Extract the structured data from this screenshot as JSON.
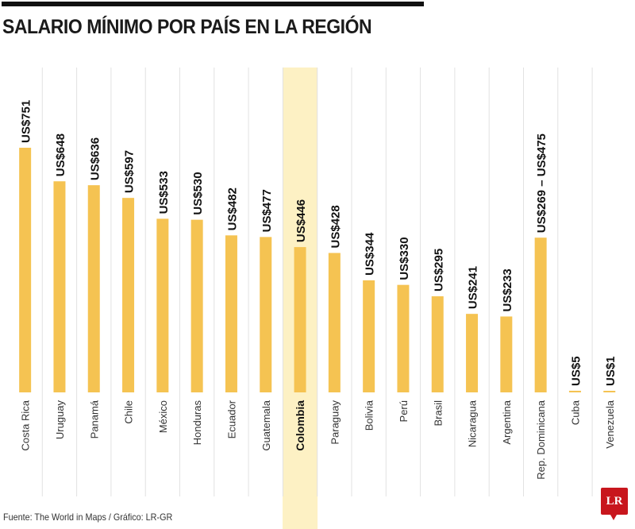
{
  "chart_data": {
    "type": "bar",
    "title": "SALARIO MÍNIMO POR PAÍS EN LA REGIÓN",
    "categories": [
      "Costa Rica",
      "Uruguay",
      "Panamá",
      "Chile",
      "México",
      "Honduras",
      "Ecuador",
      "Guatemala",
      "Colombia",
      "Paraguay",
      "Bolivia",
      "Perú",
      "Brasil",
      "Nicaragua",
      "Argentina",
      "Rep. Dominicana",
      "Cuba",
      "Venezuela"
    ],
    "values": [
      751,
      648,
      636,
      597,
      533,
      530,
      482,
      477,
      446,
      428,
      344,
      330,
      295,
      241,
      233,
      475,
      5,
      1
    ],
    "range_low": {
      "Rep. Dominicana": 269
    },
    "data_labels": [
      "US$751",
      "US$648",
      "US$636",
      "US$597",
      "US$533",
      "US$530",
      "US$482",
      "US$477",
      "US$446",
      "US$428",
      "US$344",
      "US$330",
      "US$295",
      "US$241",
      "US$233",
      "US$269 – US$475",
      "US$5",
      "US$1"
    ],
    "highlight": "Colombia",
    "unit": "US$",
    "ylim": [
      0,
      751
    ],
    "grid": false,
    "bar_color": "#f5c352",
    "highlight_color": "#fdf1c4"
  },
  "source": "Fuente: The World in Maps / Gráfico: LR-GR",
  "logo": "LR"
}
